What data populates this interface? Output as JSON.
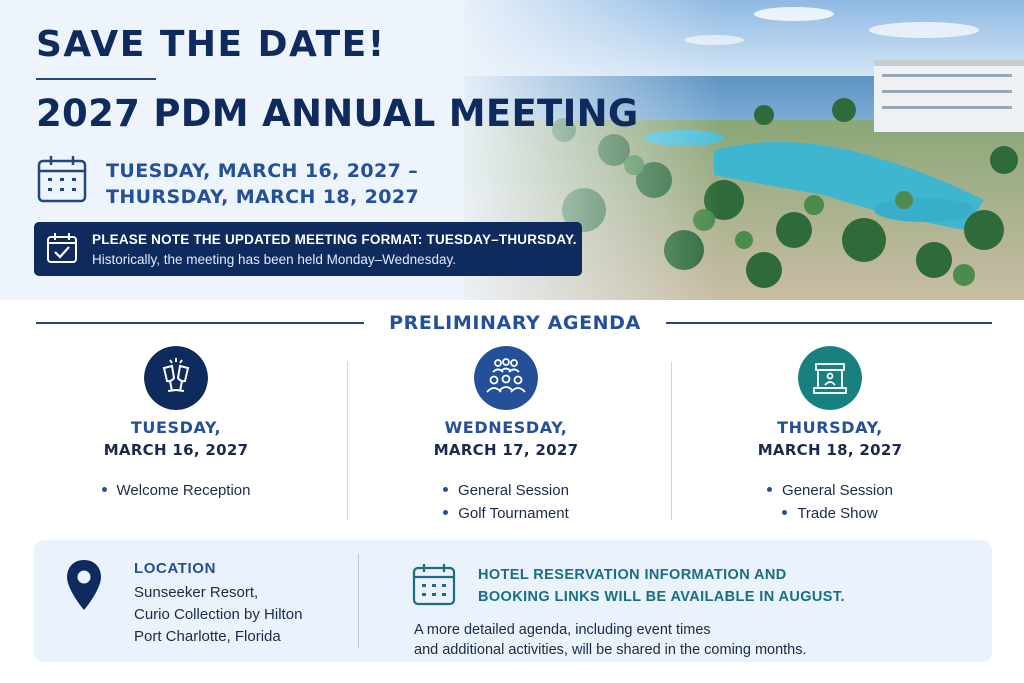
{
  "header": {
    "save_the_date": "SAVE THE DATE!",
    "meeting_title": "2027 PDM ANNUAL MEETING",
    "date_line_1": "TUESDAY, MARCH 16, 2027 –",
    "date_line_2": "THURSDAY, MARCH 18, 2027"
  },
  "notice": {
    "line_1": "PLEASE NOTE THE UPDATED MEETING FORMAT: TUESDAY–THURSDAY.",
    "line_2": "Historically, the meeting has been held Monday–Wednesday."
  },
  "agenda": {
    "title": "PRELIMINARY AGENDA",
    "days": [
      {
        "icon": "champagne-toast-icon",
        "name": "TUESDAY,",
        "date": "MARCH 16, 2027",
        "items": [
          "Welcome Reception"
        ]
      },
      {
        "icon": "audience-group-icon",
        "name": "WEDNESDAY,",
        "date": "MARCH 17, 2027",
        "items": [
          "General Session",
          "Golf Tournament"
        ]
      },
      {
        "icon": "trade-booth-icon",
        "name": "THURSDAY,",
        "date": "MARCH 18, 2027",
        "items": [
          "General Session",
          "Trade Show"
        ]
      }
    ]
  },
  "location": {
    "label": "LOCATION",
    "line_1": "Sunseeker Resort,",
    "line_2": "Curio Collection by Hilton",
    "line_3": "Port Charlotte, Florida"
  },
  "hotel": {
    "heading_1": "HOTEL RESERVATION INFORMATION AND",
    "heading_2": "BOOKING LINKS WILL BE AVAILABLE IN AUGUST.",
    "note_1": "A more detailed agenda, including event times",
    "note_2": "and additional activities, will be shared in the coming months."
  },
  "colors": {
    "navy": "#0f2a5c",
    "accent_blue": "#24509a",
    "teal": "#1a7f7f",
    "panel_bg": "#eaf2fb"
  }
}
